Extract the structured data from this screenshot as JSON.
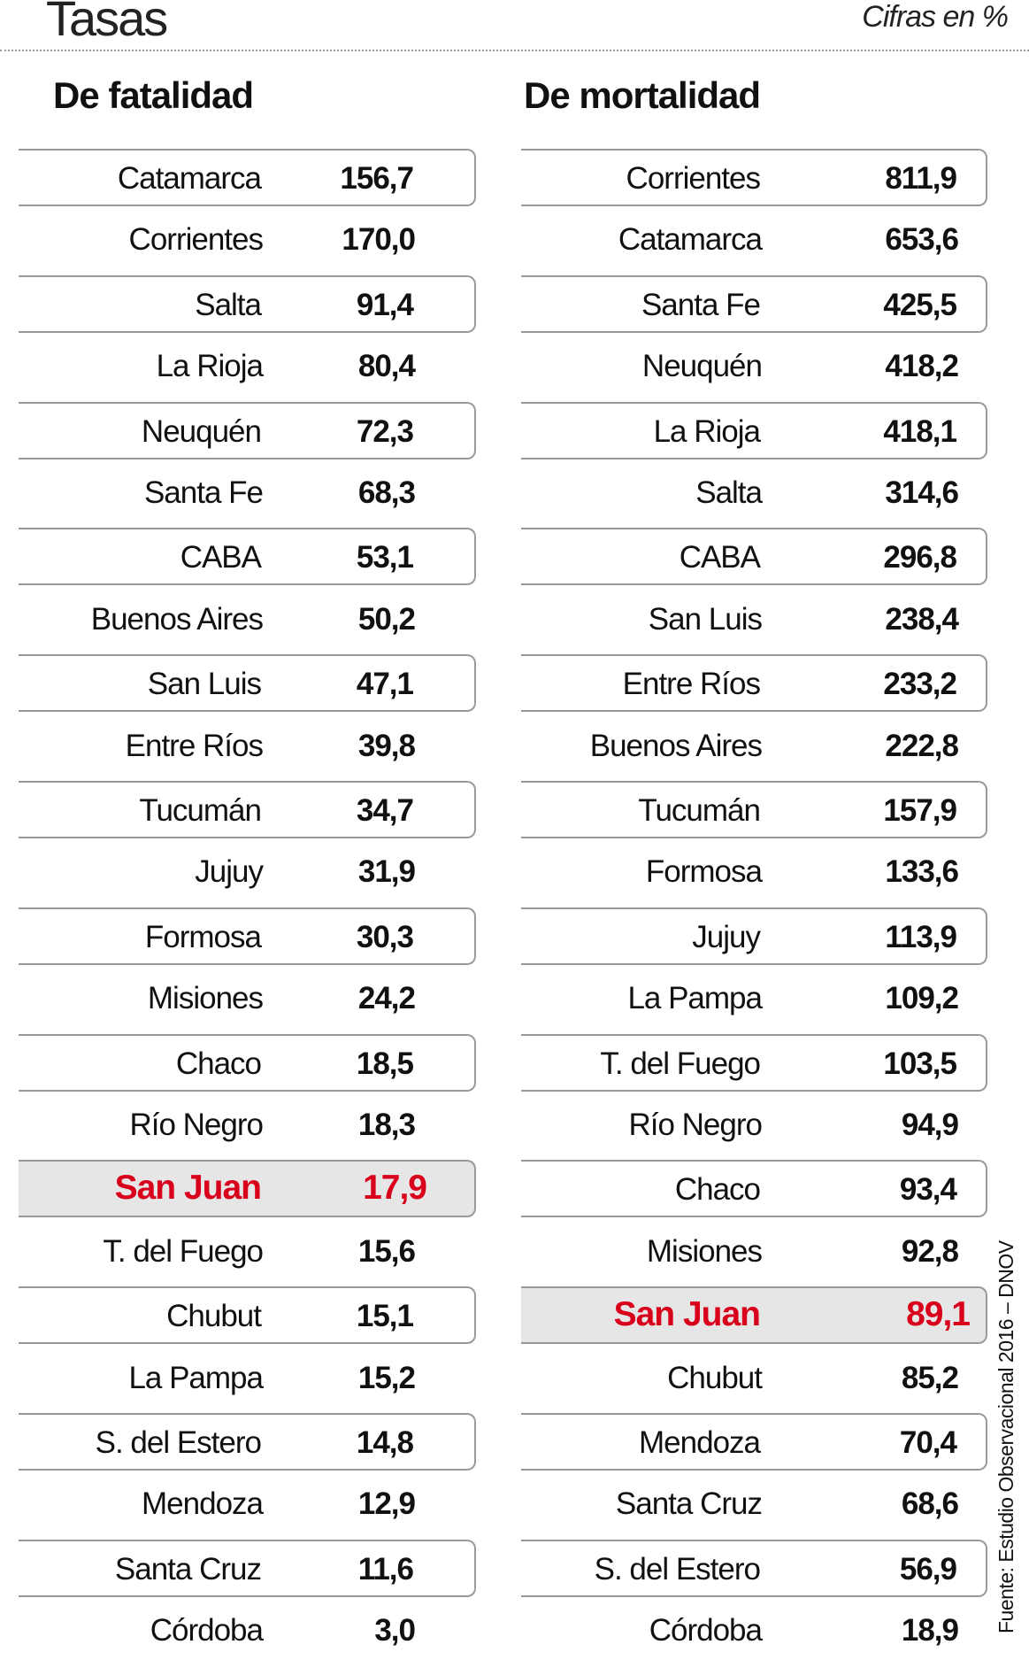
{
  "title": "Tasas",
  "units": "Cifras en %",
  "source": "Fuente: Estudio Observacional 2016 – DNOV",
  "highlight_color": "#d9001b",
  "chart_data": [
    {
      "type": "table",
      "title": "De fatalidad",
      "highlight": "San Juan",
      "rows": [
        [
          "Catamarca",
          "156,7"
        ],
        [
          "Corrientes",
          "170,0"
        ],
        [
          "Salta",
          "91,4"
        ],
        [
          "La Rioja",
          "80,4"
        ],
        [
          "Neuquén",
          "72,3"
        ],
        [
          "Santa Fe",
          "68,3"
        ],
        [
          "CABA",
          "53,1"
        ],
        [
          "Buenos Aires",
          "50,2"
        ],
        [
          "San Luis",
          "47,1"
        ],
        [
          "Entre Ríos",
          "39,8"
        ],
        [
          "Tucumán",
          "34,7"
        ],
        [
          "Jujuy",
          "31,9"
        ],
        [
          "Formosa",
          "30,3"
        ],
        [
          "Misiones",
          "24,2"
        ],
        [
          "Chaco",
          "18,5"
        ],
        [
          "Río Negro",
          "18,3"
        ],
        [
          "San Juan",
          "17,9"
        ],
        [
          "T. del Fuego",
          "15,6"
        ],
        [
          "Chubut",
          "15,1"
        ],
        [
          "La Pampa",
          "15,2"
        ],
        [
          "S. del Estero",
          "14,8"
        ],
        [
          "Mendoza",
          "12,9"
        ],
        [
          "Santa Cruz",
          "11,6"
        ],
        [
          "Córdoba",
          "3,0"
        ]
      ]
    },
    {
      "type": "table",
      "title": "De mortalidad",
      "highlight": "San Juan",
      "rows": [
        [
          "Corrientes",
          "811,9"
        ],
        [
          "Catamarca",
          "653,6"
        ],
        [
          "Santa Fe",
          "425,5"
        ],
        [
          "Neuquén",
          "418,2"
        ],
        [
          "La Rioja",
          "418,1"
        ],
        [
          "Salta",
          "314,6"
        ],
        [
          "CABA",
          "296,8"
        ],
        [
          "San Luis",
          "238,4"
        ],
        [
          "Entre Ríos",
          "233,2"
        ],
        [
          "Buenos Aires",
          "222,8"
        ],
        [
          "Tucumán",
          "157,9"
        ],
        [
          "Formosa",
          "133,6"
        ],
        [
          "Jujuy",
          "113,9"
        ],
        [
          "La Pampa",
          "109,2"
        ],
        [
          "T. del Fuego",
          "103,5"
        ],
        [
          "Río Negro",
          "94,9"
        ],
        [
          "Chaco",
          "93,4"
        ],
        [
          "Misiones",
          "92,8"
        ],
        [
          "San Juan",
          "89,1"
        ],
        [
          "Chubut",
          "85,2"
        ],
        [
          "Mendoza",
          "70,4"
        ],
        [
          "Santa Cruz",
          "68,6"
        ],
        [
          "S. del Estero",
          "56,9"
        ],
        [
          "Córdoba",
          "18,9"
        ]
      ]
    }
  ]
}
